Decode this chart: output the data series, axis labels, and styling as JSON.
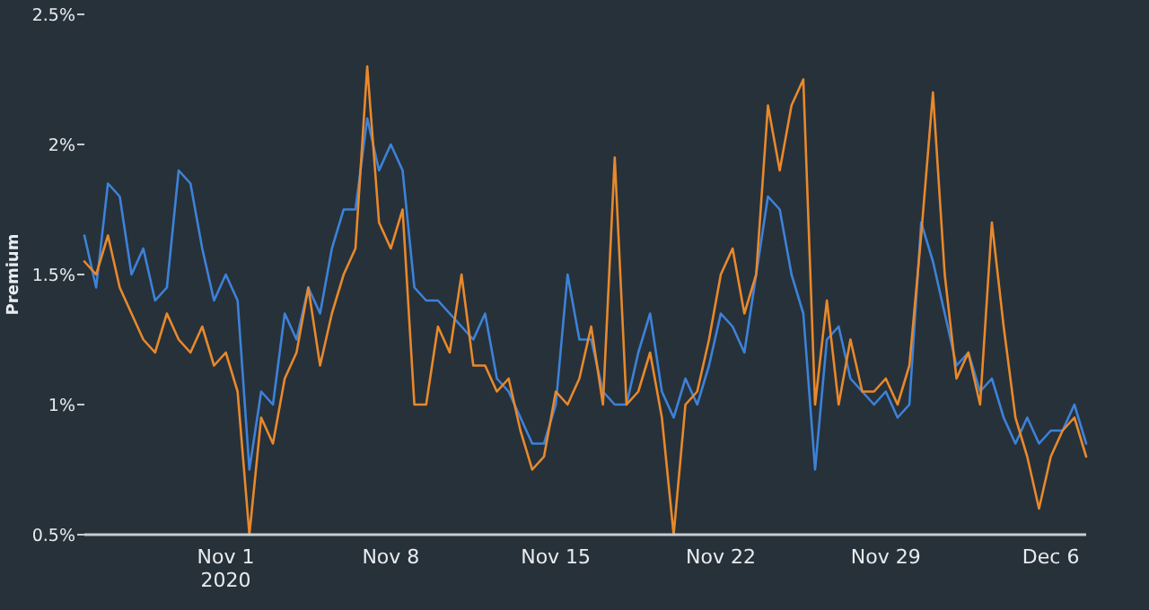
{
  "chart_data": {
    "type": "line",
    "ylabel": "Premium",
    "x": [
      "2020-10-26T00:00",
      "2020-10-26T12:00",
      "2020-10-27T00:00",
      "2020-10-27T12:00",
      "2020-10-28T00:00",
      "2020-10-28T12:00",
      "2020-10-29T00:00",
      "2020-10-29T12:00",
      "2020-10-30T00:00",
      "2020-10-30T12:00",
      "2020-10-31T00:00",
      "2020-10-31T12:00",
      "2020-11-01T00:00",
      "2020-11-01T12:00",
      "2020-11-02T00:00",
      "2020-11-02T12:00",
      "2020-11-03T00:00",
      "2020-11-03T12:00",
      "2020-11-04T00:00",
      "2020-11-04T12:00",
      "2020-11-05T00:00",
      "2020-11-05T12:00",
      "2020-11-06T00:00",
      "2020-11-06T12:00",
      "2020-11-07T00:00",
      "2020-11-07T12:00",
      "2020-11-08T00:00",
      "2020-11-08T12:00",
      "2020-11-09T00:00",
      "2020-11-09T12:00",
      "2020-11-10T00:00",
      "2020-11-10T12:00",
      "2020-11-11T00:00",
      "2020-11-11T12:00",
      "2020-11-12T00:00",
      "2020-11-12T12:00",
      "2020-11-13T00:00",
      "2020-11-13T12:00",
      "2020-11-14T00:00",
      "2020-11-14T12:00",
      "2020-11-15T00:00",
      "2020-11-15T12:00",
      "2020-11-16T00:00",
      "2020-11-16T12:00",
      "2020-11-17T00:00",
      "2020-11-17T12:00",
      "2020-11-18T00:00",
      "2020-11-18T12:00",
      "2020-11-19T00:00",
      "2020-11-19T12:00",
      "2020-11-20T00:00",
      "2020-11-20T12:00",
      "2020-11-21T00:00",
      "2020-11-21T12:00",
      "2020-11-22T00:00",
      "2020-11-22T12:00",
      "2020-11-23T00:00",
      "2020-11-23T12:00",
      "2020-11-24T00:00",
      "2020-11-24T12:00",
      "2020-11-25T00:00",
      "2020-11-25T12:00",
      "2020-11-26T00:00",
      "2020-11-26T12:00",
      "2020-11-27T00:00",
      "2020-11-27T12:00",
      "2020-11-28T00:00",
      "2020-11-28T12:00",
      "2020-11-29T00:00",
      "2020-11-29T12:00",
      "2020-11-30T00:00",
      "2020-11-30T12:00",
      "2020-12-01T00:00",
      "2020-12-01T12:00",
      "2020-12-02T00:00",
      "2020-12-02T12:00",
      "2020-12-03T00:00",
      "2020-12-03T12:00",
      "2020-12-04T00:00",
      "2020-12-04T12:00",
      "2020-12-05T00:00",
      "2020-12-05T12:00",
      "2020-12-06T00:00",
      "2020-12-06T12:00",
      "2020-12-07T00:00",
      "2020-12-07T12:00"
    ],
    "series": [
      {
        "color": "#3d82d8",
        "values": [
          1.65,
          1.45,
          1.85,
          1.8,
          1.5,
          1.6,
          1.4,
          1.45,
          1.9,
          1.85,
          1.6,
          1.4,
          1.5,
          1.4,
          0.75,
          1.05,
          1.0,
          1.35,
          1.25,
          1.45,
          1.35,
          1.6,
          1.75,
          1.75,
          2.1,
          1.9,
          2.0,
          1.9,
          1.45,
          1.4,
          1.4,
          1.35,
          1.3,
          1.25,
          1.35,
          1.1,
          1.05,
          0.95,
          0.85,
          0.85,
          1.0,
          1.5,
          1.25,
          1.25,
          1.05,
          1.0,
          1.0,
          1.2,
          1.35,
          1.05,
          0.95,
          1.1,
          1.0,
          1.15,
          1.35,
          1.3,
          1.2,
          1.5,
          1.8,
          1.75,
          1.5,
          1.35,
          0.75,
          1.25,
          1.3,
          1.1,
          1.05,
          1.0,
          1.05,
          0.95,
          1.0,
          1.7,
          1.55,
          1.35,
          1.15,
          1.2,
          1.05,
          1.1,
          0.95,
          0.85,
          0.95,
          0.85,
          0.9,
          0.9,
          1.0,
          0.85
        ]
      },
      {
        "color": "#e8892c",
        "values": [
          1.55,
          1.5,
          1.65,
          1.45,
          1.35,
          1.25,
          1.2,
          1.35,
          1.25,
          1.2,
          1.3,
          1.15,
          1.2,
          1.05,
          0.5,
          0.95,
          0.85,
          1.1,
          1.2,
          1.45,
          1.15,
          1.35,
          1.5,
          1.6,
          2.3,
          1.7,
          1.6,
          1.75,
          1.0,
          1.0,
          1.3,
          1.2,
          1.5,
          1.15,
          1.15,
          1.05,
          1.1,
          0.9,
          0.75,
          0.8,
          1.05,
          1.0,
          1.1,
          1.3,
          1.0,
          1.95,
          1.0,
          1.05,
          1.2,
          0.95,
          0.5,
          1.0,
          1.05,
          1.25,
          1.5,
          1.6,
          1.35,
          1.5,
          2.15,
          1.9,
          2.15,
          2.25,
          1.0,
          1.4,
          1.0,
          1.25,
          1.05,
          1.05,
          1.1,
          1.0,
          1.15,
          1.65,
          2.2,
          1.5,
          1.1,
          1.2,
          1.0,
          1.7,
          1.3,
          0.95,
          0.8,
          0.6,
          0.8,
          0.9,
          0.95,
          0.8
        ]
      }
    ],
    "xlim": [
      "2020-10-26T00:00",
      "2020-12-07T12:00"
    ],
    "xticks": [
      {
        "value": "2020-11-01",
        "label": "Nov 1\n2020"
      },
      {
        "value": "2020-11-08",
        "label": "Nov 8"
      },
      {
        "value": "2020-11-15",
        "label": "Nov 15"
      },
      {
        "value": "2020-11-22",
        "label": "Nov 22"
      },
      {
        "value": "2020-11-29",
        "label": "Nov 29"
      },
      {
        "value": "2020-12-06",
        "label": "Dec 6"
      }
    ],
    "ylim": [
      0.5,
      2.5
    ],
    "yticks": [
      {
        "value": 0.5,
        "label": "0.5%"
      },
      {
        "value": 1,
        "label": "1%"
      },
      {
        "value": 1.5,
        "label": "1.5%"
      },
      {
        "value": 2,
        "label": "2%"
      },
      {
        "value": 2.5,
        "label": "2.5%"
      }
    ],
    "grid": false
  }
}
